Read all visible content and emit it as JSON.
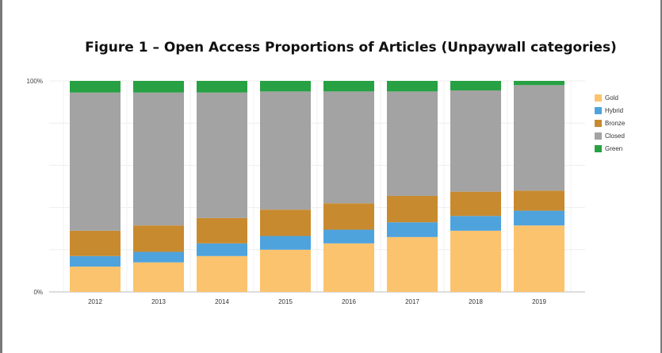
{
  "title": "Figure 1 – Open Access Proportions of Articles (Unpaywall categories)",
  "chart_data": {
    "type": "bar",
    "stacked": true,
    "title": "Figure 1 – Open Access Proportions of Articles (Unpaywall categories)",
    "categories": [
      "2012",
      "2013",
      "2014",
      "2015",
      "2016",
      "2017",
      "2018",
      "2019"
    ],
    "y_tick_labels": [
      "0%",
      "100%"
    ],
    "ylim": [
      0,
      100
    ],
    "legend_position": "right",
    "series": [
      {
        "name": "Gold",
        "color": "#fbc36e",
        "values": [
          12,
          14,
          17,
          20,
          23,
          26,
          29,
          31.5
        ]
      },
      {
        "name": "Hybrid",
        "color": "#4ea3dd",
        "values": [
          5,
          5,
          6,
          6.5,
          6.5,
          7,
          7,
          7
        ]
      },
      {
        "name": "Bronze",
        "color": "#c88a2e",
        "values": [
          12,
          12.5,
          12,
          12.5,
          12.5,
          12.5,
          11.5,
          9.5
        ]
      },
      {
        "name": "Closed",
        "color": "#a3a3a3",
        "values": [
          65.5,
          63,
          59.5,
          56,
          53,
          49.5,
          48,
          50
        ]
      },
      {
        "name": "Green",
        "color": "#27a143",
        "values": [
          5.5,
          5.5,
          5.5,
          5,
          5,
          5,
          4.5,
          2
        ]
      }
    ]
  }
}
